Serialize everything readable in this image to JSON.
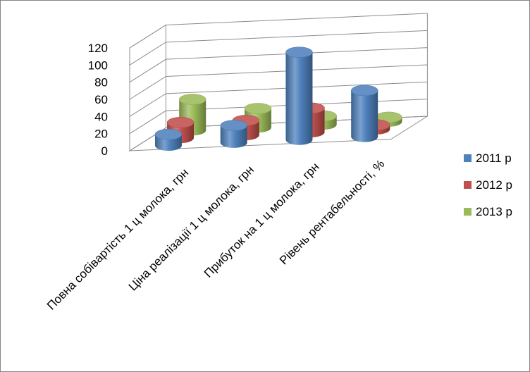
{
  "chart_data": {
    "type": "bar",
    "subtype": "3d-cylinder",
    "categories": [
      "Повна собівартість 1 ц молока, грн",
      "Ціна реалізації 1 ц молока, грн",
      "Прибуток на 1 ц молока, грн",
      "Рівень рентабельності, %"
    ],
    "series": [
      {
        "name": "2011 р",
        "color": "#4f81bd",
        "values": [
          13,
          20,
          102,
          54
        ]
      },
      {
        "name": "2012 р",
        "color": "#c0504d",
        "values": [
          18,
          17,
          28,
          5
        ]
      },
      {
        "name": "2013 р",
        "color": "#9bbb59",
        "values": [
          36,
          22,
          10,
          5
        ]
      }
    ],
    "ylim": [
      0,
      120
    ],
    "yticks": [
      0,
      20,
      40,
      60,
      80,
      100,
      120
    ],
    "ytick_labels": [
      "0",
      "20",
      "40",
      "60",
      "80",
      "100",
      "120"
    ],
    "grid": true,
    "legend_position": "right"
  }
}
